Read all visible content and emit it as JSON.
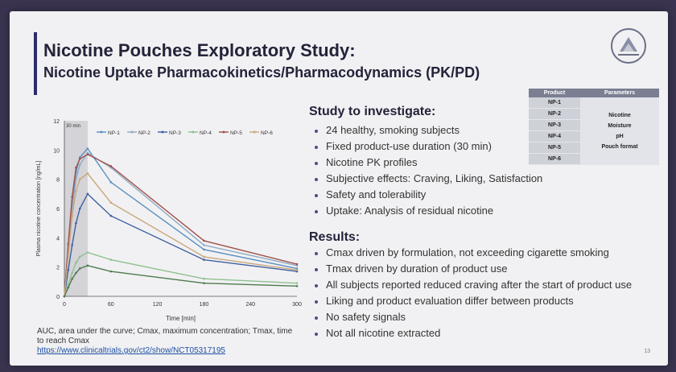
{
  "slide": {
    "title": "Nicotine Pouches Exploratory Study:",
    "subtitle": "Nicotine Uptake Pharmacokinetics/Pharmacodynamics (PK/PD)",
    "page_number": "13"
  },
  "study": {
    "heading": "Study to investigate:",
    "items": [
      "24 healthy, smoking subjects",
      "Fixed product-use duration (30 min)",
      "Nicotine PK profiles",
      "Subjective effects: Craving, Liking, Satisfaction",
      "Safety and tolerability",
      "Uptake: Analysis of residual nicotine"
    ]
  },
  "results": {
    "heading": "Results:",
    "items": [
      "Cmax driven by formulation, not exceeding cigarette smoking",
      "Tmax driven by duration of product use",
      "All subjects reported reduced craving after the start of product use",
      "Liking and product evaluation differ between products",
      "No safety signals",
      "Not all nicotine extracted"
    ]
  },
  "product_table": {
    "headers": [
      "Product",
      "Parameters"
    ],
    "products": [
      "NP-1",
      "NP-2",
      "NP-3",
      "NP-4",
      "NP-5",
      "NP-6"
    ],
    "parameters": [
      "Nicotine",
      "Moisture",
      "pH",
      "Pouch format"
    ]
  },
  "footnote": {
    "text": "AUC, area under the curve; Cmax, maximum concentration; Tmax, time to reach Cmax",
    "link": "https://www.clinicaltrials.gov/ct2/show/NCT05317195"
  },
  "chart_data": {
    "type": "line",
    "xlabel": "Time [min]",
    "ylabel": "Plasma nicotine concentration [ng/mL]",
    "xlim": [
      0,
      300
    ],
    "ylim": [
      0,
      12
    ],
    "xticks": [
      0,
      60,
      120,
      180,
      240,
      300
    ],
    "yticks": [
      0,
      2,
      4,
      6,
      8,
      10,
      12
    ],
    "shaded_band_label": "30 min",
    "shaded_band": [
      0,
      30
    ],
    "legend_position": "top",
    "x": [
      0,
      5,
      10,
      15,
      20,
      30,
      60,
      180,
      300
    ],
    "series": [
      {
        "name": "NP-1",
        "color": "#5a8fc0",
        "values": [
          0,
          3.5,
          6.5,
          8.5,
          9.5,
          10.1,
          7.8,
          3.2,
          1.9
        ]
      },
      {
        "name": "NP-2",
        "color": "#8fa9c4",
        "values": [
          0,
          3.0,
          6.0,
          8.0,
          9.0,
          9.8,
          8.8,
          3.5,
          2.1
        ]
      },
      {
        "name": "NP-3",
        "color": "#3e5fa0",
        "values": [
          0,
          1.8,
          3.5,
          5.0,
          6.0,
          7.0,
          5.5,
          2.5,
          1.7
        ]
      },
      {
        "name": "NP-4",
        "color": "#8fc08f",
        "values": [
          0,
          0.8,
          1.6,
          2.3,
          2.7,
          3.0,
          2.5,
          1.2,
          0.9
        ]
      },
      {
        "name": "NP-5",
        "color": "#a0524a",
        "values": [
          0,
          3.6,
          6.8,
          8.8,
          9.4,
          9.7,
          8.9,
          3.8,
          2.2
        ]
      },
      {
        "name": "NP-6",
        "color": "#c9a77a",
        "values": [
          0,
          2.8,
          5.5,
          7.2,
          8.0,
          8.4,
          6.4,
          2.7,
          1.8
        ]
      },
      {
        "name": "",
        "color": "#4f7a4f",
        "values": [
          0,
          0.6,
          1.2,
          1.6,
          1.9,
          2.1,
          1.7,
          0.9,
          0.7
        ]
      }
    ]
  }
}
